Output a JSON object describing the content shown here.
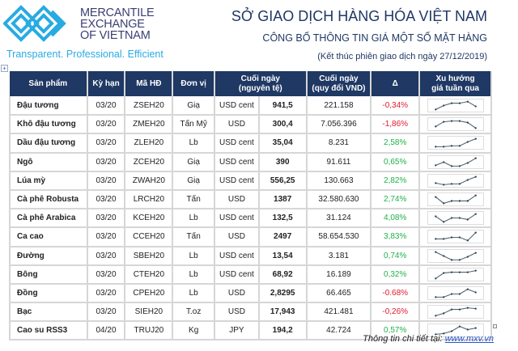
{
  "brand": {
    "line1": "MERCANTILE",
    "line2": "EXCHANGE",
    "line3": "OF VIETNAM",
    "tagline": "Transparent. Professional. Efficient"
  },
  "header": {
    "title": "SỞ GIAO DỊCH HÀNG HÓA VIỆT NAM",
    "subtitle": "CÔNG BỐ THÔNG TIN GIÁ MỘT SỐ MẶT HÀNG",
    "date_note": "(Kết thúc phiên giao dịch ngày 27/12/2019)"
  },
  "table": {
    "columns": [
      "Sản phẩm",
      "Kỳ hạn",
      "Mã HĐ",
      "Đơn vị",
      "Cuối ngày",
      "(nguyên tệ)",
      "Cuối ngày",
      "(quy đổi VND)",
      "Δ",
      "Xu hướng",
      "giá tuần qua"
    ],
    "rows": [
      {
        "product": "Đậu tương",
        "term": "03/20",
        "code": "ZSEH20",
        "unit": "Giạ",
        "currency": "USD cent",
        "price": "941,5",
        "vnd": "221.158",
        "change": "-0,34%",
        "dir": "neg",
        "trend": [
          0,
          5,
          8,
          8,
          10,
          4
        ]
      },
      {
        "product": "Khô đậu tương",
        "term": "03/20",
        "code": "ZMEH20",
        "unit": "Tấn Mỹ",
        "currency": "USD",
        "price": "300,4",
        "vnd": "7.056.396",
        "change": "-1,86%",
        "dir": "neg",
        "trend": [
          2,
          8,
          9,
          9,
          7,
          0
        ]
      },
      {
        "product": "Dầu đậu tương",
        "term": "03/20",
        "code": "ZLEH20",
        "unit": "Lb",
        "currency": "USD cent",
        "price": "35,04",
        "vnd": "8.231",
        "change": "2,58%",
        "dir": "pos",
        "trend": [
          0,
          0,
          1,
          1,
          6,
          10
        ]
      },
      {
        "product": "Ngô",
        "term": "03/20",
        "code": "ZCEH20",
        "unit": "Giạ",
        "currency": "USD cent",
        "price": "390",
        "vnd": "91.611",
        "change": "0,65%",
        "dir": "pos",
        "trend": [
          1,
          5,
          0,
          0,
          4,
          10
        ]
      },
      {
        "product": "Lúa mỳ",
        "term": "03/20",
        "code": "ZWAH20",
        "unit": "Giạ",
        "currency": "USD cent",
        "price": "556,25",
        "vnd": "130.663",
        "change": "2,82%",
        "dir": "pos",
        "trend": [
          2,
          0,
          1,
          1,
          6,
          10
        ]
      },
      {
        "product": "Cà phê Robusta",
        "term": "03/20",
        "code": "LRCH20",
        "unit": "Tấn",
        "currency": "USD",
        "price": "1387",
        "vnd": "32.580.630",
        "change": "2,74%",
        "dir": "pos",
        "trend": [
          8,
          0,
          3,
          3,
          3,
          10
        ]
      },
      {
        "product": "Cà phê Arabica",
        "term": "03/20",
        "code": "KCEH20",
        "unit": "Lb",
        "currency": "USD cent",
        "price": "132,5",
        "vnd": "31.124",
        "change": "4,08%",
        "dir": "pos",
        "trend": [
          7,
          0,
          5,
          5,
          3,
          10
        ]
      },
      {
        "product": "Ca cao",
        "term": "03/20",
        "code": "CCEH20",
        "unit": "Tấn",
        "currency": "USD",
        "price": "2497",
        "vnd": "58.654.530",
        "change": "3,83%",
        "dir": "pos",
        "trend": [
          2,
          2,
          4,
          4,
          0,
          10
        ]
      },
      {
        "product": "Đường",
        "term": "03/20",
        "code": "SBEH20",
        "unit": "Lb",
        "currency": "USD cent",
        "price": "13,54",
        "vnd": "3.181",
        "change": "0,74%",
        "dir": "pos",
        "trend": [
          10,
          5,
          0,
          0,
          4,
          9
        ]
      },
      {
        "product": "Bông",
        "term": "03/20",
        "code": "CTEH20",
        "unit": "Lb",
        "currency": "USD cent",
        "price": "68,92",
        "vnd": "16.189",
        "change": "0,32%",
        "dir": "pos",
        "trend": [
          0,
          7,
          8,
          8,
          8,
          10
        ]
      },
      {
        "product": "Đồng",
        "term": "03/20",
        "code": "CPEH20",
        "unit": "Lb",
        "currency": "USD",
        "price": "2,8295",
        "vnd": "66.465",
        "change": "-0.68%",
        "dir": "neg",
        "trend": [
          0,
          0,
          4,
          4,
          10,
          6
        ]
      },
      {
        "product": "Bạc",
        "term": "03/20",
        "code": "SIEH20",
        "unit": "T.oz",
        "currency": "USD",
        "price": "17,943",
        "vnd": "421.481",
        "change": "-0,26%",
        "dir": "neg",
        "trend": [
          0,
          3,
          8,
          8,
          10,
          9
        ]
      },
      {
        "product": "Cao su RSS3",
        "term": "04/20",
        "code": "TRUJ20",
        "unit": "Kg",
        "currency": "JPY",
        "price": "194,2",
        "vnd": "42.724",
        "change": "0,57%",
        "dir": "pos",
        "trend": [
          0,
          1,
          4,
          10,
          6,
          8
        ]
      }
    ]
  },
  "footer": {
    "label": "Thông tin chi tiết tại:",
    "link": "www.mxv.vn"
  },
  "colors": {
    "navy": "#1f3864",
    "cyan": "#29abe2",
    "negative": "#e0192e",
    "positive": "#1fb24a"
  }
}
